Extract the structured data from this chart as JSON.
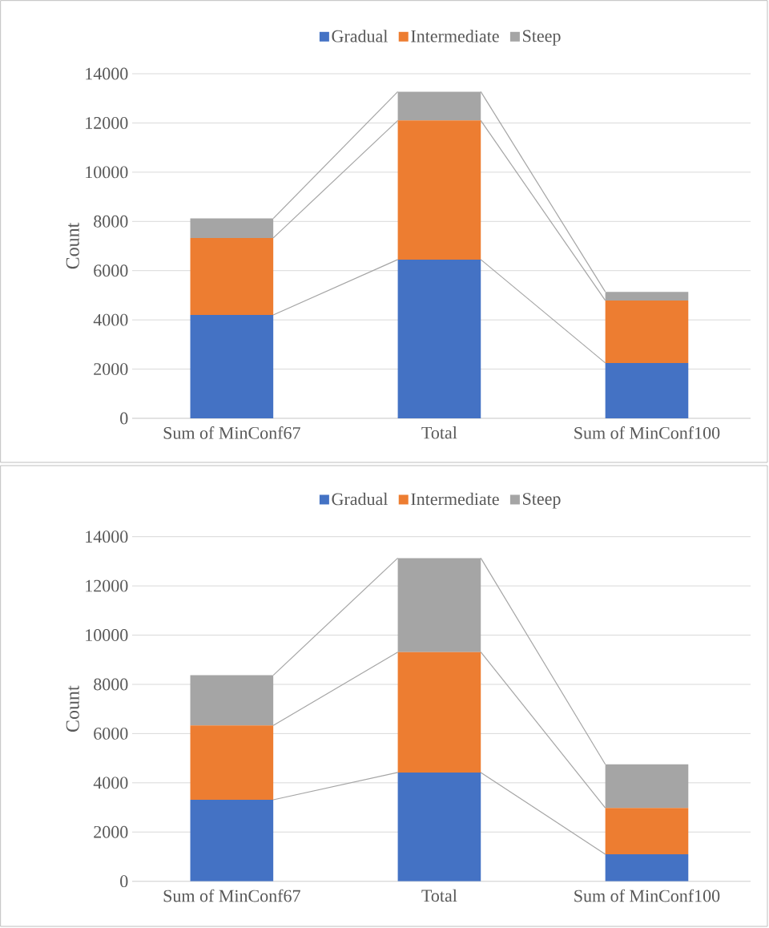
{
  "chart_data": [
    {
      "type": "bar",
      "stacked": true,
      "ylabel": "Count",
      "categories": [
        "Sum of MinConf67",
        "Total",
        "Sum of MinConf100"
      ],
      "ylim": [
        0,
        14000
      ],
      "yticks": [
        0,
        2000,
        4000,
        6000,
        8000,
        10000,
        12000,
        14000
      ],
      "grid": "y",
      "legend": "top",
      "series": [
        {
          "name": "Gradual",
          "color": "#4472c4",
          "values": [
            4200,
            6450,
            2250
          ]
        },
        {
          "name": "Intermediate",
          "color": "#ed7d31",
          "values": [
            3130,
            5650,
            2540
          ]
        },
        {
          "name": "Steep",
          "color": "#a5a5a5",
          "values": [
            790,
            1170,
            350
          ]
        }
      ]
    },
    {
      "type": "bar",
      "stacked": true,
      "ylabel": "Count",
      "categories": [
        "Sum of MinConf67",
        "Total",
        "Sum of MinConf100"
      ],
      "ylim": [
        0,
        14000
      ],
      "yticks": [
        0,
        2000,
        4000,
        6000,
        8000,
        10000,
        12000,
        14000
      ],
      "grid": "y",
      "legend": "top",
      "series": [
        {
          "name": "Gradual",
          "color": "#4472c4",
          "values": [
            3310,
            4420,
            1100
          ]
        },
        {
          "name": "Intermediate",
          "color": "#ed7d31",
          "values": [
            3020,
            4890,
            1880
          ]
        },
        {
          "name": "Steep",
          "color": "#a5a5a5",
          "values": [
            2040,
            3820,
            1770
          ]
        }
      ]
    }
  ]
}
